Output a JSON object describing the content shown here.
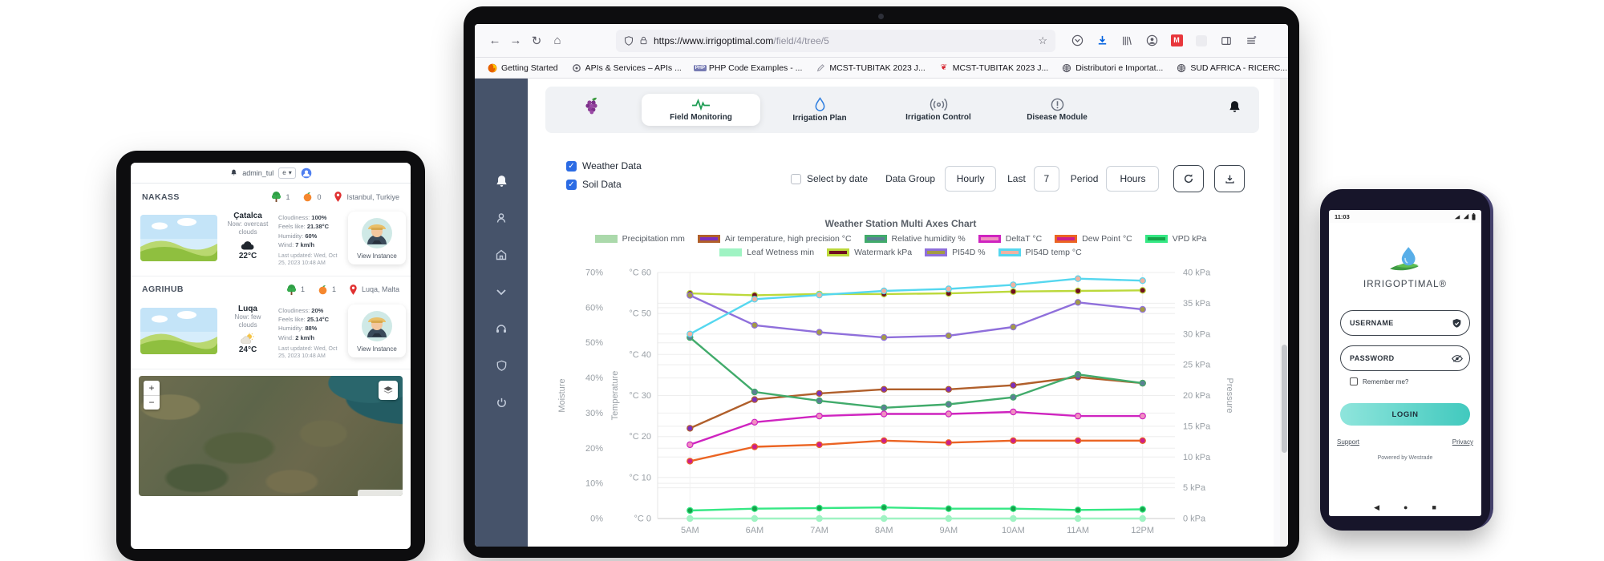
{
  "browser": {
    "url_domain": "https://www.irrigoptimal.com",
    "url_path": "/field/4/tree/5",
    "star": "☆",
    "back": "←",
    "forward": "→",
    "reload": "↻",
    "home": "⌂",
    "bookmarks": [
      {
        "label": "Getting Started",
        "icon": "firefox-icon"
      },
      {
        "label": "APIs & Services – APIs ...",
        "icon": "gear-icon"
      },
      {
        "label": "PHP Code Examples - ...",
        "icon": "php-icon"
      },
      {
        "label": "MCST-TUBITAK 2023 J...",
        "icon": "pencil-icon"
      },
      {
        "label": "MCST-TUBITAK 2023 J...",
        "icon": "heart-icon"
      },
      {
        "label": "Distributori e Importat...",
        "icon": "globe-icon"
      },
      {
        "label": "SUD AFRICA - RICERC...",
        "icon": "globe-icon"
      }
    ],
    "overflow_chevron": "»",
    "action_icons": [
      "pocket-icon",
      "download-icon",
      "library-icon",
      "account-icon",
      "mx-extension-icon",
      "extension-icon",
      "open-sidebar-icon",
      "menu-icon"
    ]
  },
  "app": {
    "sidebar_icons": [
      "bell-icon",
      "user-icon",
      "home-icon",
      "chevron-down-icon",
      "headset-icon",
      "shield-icon",
      "power-icon"
    ],
    "nav": [
      {
        "label": "Field Monitoring",
        "icon": "pulse-icon",
        "active": true
      },
      {
        "label": "Irrigation Plan",
        "icon": "drop-icon",
        "active": false
      },
      {
        "label": "Irrigation Control",
        "icon": "signal-icon",
        "active": false
      },
      {
        "label": "Disease Module",
        "icon": "alert-icon",
        "active": false
      }
    ],
    "controls": {
      "weather_data": "Weather Data",
      "soil_data": "Soil Data",
      "select_by_date": "Select by date",
      "data_group_label": "Data Group",
      "data_group_value": "Hourly",
      "last_label": "Last",
      "last_value": "7",
      "period_label": "Period",
      "period_value": "Hours"
    }
  },
  "chart_data": {
    "type": "line",
    "title": "Weather Station Multi Axes Chart",
    "categories": [
      "5AM",
      "6AM",
      "7AM",
      "8AM",
      "9AM",
      "10AM",
      "11AM",
      "12PM"
    ],
    "grid": true,
    "legend_position": "top",
    "axes": {
      "moisture": {
        "title": "Moisture",
        "unit": "%",
        "min": 0,
        "max": 70,
        "step": 10,
        "side": "outer-left"
      },
      "temperature": {
        "title": "Temperature",
        "unit": "°C",
        "min": 0,
        "max": 60,
        "step": 10,
        "side": "inner-left"
      },
      "pressure": {
        "title": "Pressure",
        "unit": "kPa",
        "min": 0,
        "max": 40,
        "step": 5,
        "side": "right"
      }
    },
    "series": [
      {
        "name": "Precipitation mm",
        "axis": "moisture",
        "kind": "bar",
        "legend_row": 1,
        "line": "#abd9ab",
        "fill": "#abd9ab",
        "values": [
          0,
          0,
          0,
          0,
          0,
          0,
          0,
          0
        ]
      },
      {
        "name": "Air temperature, high precision °C",
        "axis": "temperature",
        "kind": "line",
        "legend_row": 1,
        "line": "#b05f2b",
        "fill": "#7b2fbe",
        "values": [
          22,
          29,
          30.5,
          31.5,
          31.5,
          32.5,
          34.5,
          33
        ]
      },
      {
        "name": "Relative humidity %",
        "axis": "moisture",
        "kind": "line",
        "legend_row": 1,
        "line": "#41ab6b",
        "fill": "#5c7f94",
        "values": [
          51.5,
          36,
          33.5,
          31.5,
          32.5,
          34.5,
          41,
          38.5
        ]
      },
      {
        "name": "DeltaT °C",
        "axis": "temperature",
        "kind": "line",
        "legend_row": 1,
        "line": "#cf24c0",
        "fill": "#f08fc0",
        "values": [
          18,
          23.5,
          25,
          25.5,
          25.5,
          26,
          25,
          25
        ]
      },
      {
        "name": "Dew Point °C",
        "axis": "temperature",
        "kind": "line",
        "legend_row": 1,
        "line": "#eb6423",
        "fill": "#cc1f8b",
        "values": [
          14,
          17.5,
          18,
          19,
          18.5,
          19,
          19,
          19
        ]
      },
      {
        "name": "VPD kPa",
        "axis": "pressure",
        "kind": "line",
        "legend_row": 1,
        "line": "#35e884",
        "fill": "#16a34a",
        "values": [
          1.3,
          1.6,
          1.7,
          1.8,
          1.6,
          1.6,
          1.4,
          1.5
        ]
      },
      {
        "name": "Leaf Wetness min",
        "axis": "moisture",
        "kind": "line",
        "legend_row": 2,
        "line": "#9ff3c3",
        "fill": "#9ff3c3",
        "values": [
          0,
          0,
          0,
          0,
          0,
          0,
          0,
          0
        ]
      },
      {
        "name": "Watermark kPa",
        "axis": "pressure",
        "kind": "line",
        "legend_row": 2,
        "line": "#bcd93b",
        "fill": "#70101f",
        "values": [
          36.6,
          36.3,
          36.5,
          36.5,
          36.6,
          36.9,
          37,
          37.1
        ]
      },
      {
        "name": "PI54D %",
        "axis": "moisture",
        "kind": "line",
        "legend_row": 2,
        "line": "#8f6fdb",
        "fill": "#a39a45",
        "values": [
          63.5,
          55,
          53,
          51.5,
          52,
          54.5,
          61.5,
          59.5
        ]
      },
      {
        "name": "PI54D temp °C",
        "axis": "temperature",
        "kind": "line",
        "legend_row": 2,
        "line": "#55d7ef",
        "fill": "#efb2a2",
        "values": [
          45,
          53.5,
          54.5,
          55.5,
          56,
          57,
          58.5,
          58
        ]
      }
    ]
  },
  "tablet": {
    "topbar": {
      "user": "admin_tul",
      "lang_value": "e",
      "caret": "▾"
    },
    "sections": [
      {
        "name": "NAKASS",
        "tree_count": "1",
        "fruit_count": "0",
        "location": "Istanbul, Turkiye",
        "card": {
          "town": "Çatalca",
          "now": "Now: overcast clouds",
          "temp": "22°C",
          "weather_icon": "cloud-icon",
          "details": [
            {
              "label": "Cloudiness:",
              "value": "100%"
            },
            {
              "label": "Feels like:",
              "value": "21.38°C"
            },
            {
              "label": "Humidity:",
              "value": "60%"
            },
            {
              "label": "Wind:",
              "value": "7 km/h"
            }
          ],
          "updated": "Last updated: Wed, Oct 25, 2023 10:48 AM",
          "button": "View Instance"
        }
      },
      {
        "name": "AGRIHUB",
        "tree_count": "1",
        "fruit_count": "1",
        "location": "Luqa, Malta",
        "card": {
          "town": "Luqa",
          "now": "Now: few clouds",
          "temp": "24°C",
          "weather_icon": "sun-cloud-icon",
          "details": [
            {
              "label": "Cloudiness:",
              "value": "20%"
            },
            {
              "label": "Feels like:",
              "value": "25.14°C"
            },
            {
              "label": "Humidity:",
              "value": "88%"
            },
            {
              "label": "Wind:",
              "value": "2 km/h"
            }
          ],
          "updated": "Last updated: Wed, Oct 25, 2023 10:48 AM",
          "button": "View Instance"
        }
      }
    ],
    "map": {
      "zoom_in": "+",
      "zoom_out": "−"
    }
  },
  "phone": {
    "time": "11:03",
    "brand": "IRRIGOPTIMAL®",
    "username_placeholder": "USERNAME",
    "password_placeholder": "PASSWORD",
    "remember": "Remember me?",
    "login": "LOGIN",
    "support": "Support",
    "privacy": "Privacy",
    "powered": "Powered by Westrade",
    "nav": {
      "back": "◀",
      "home": "●",
      "recents": "■"
    }
  }
}
